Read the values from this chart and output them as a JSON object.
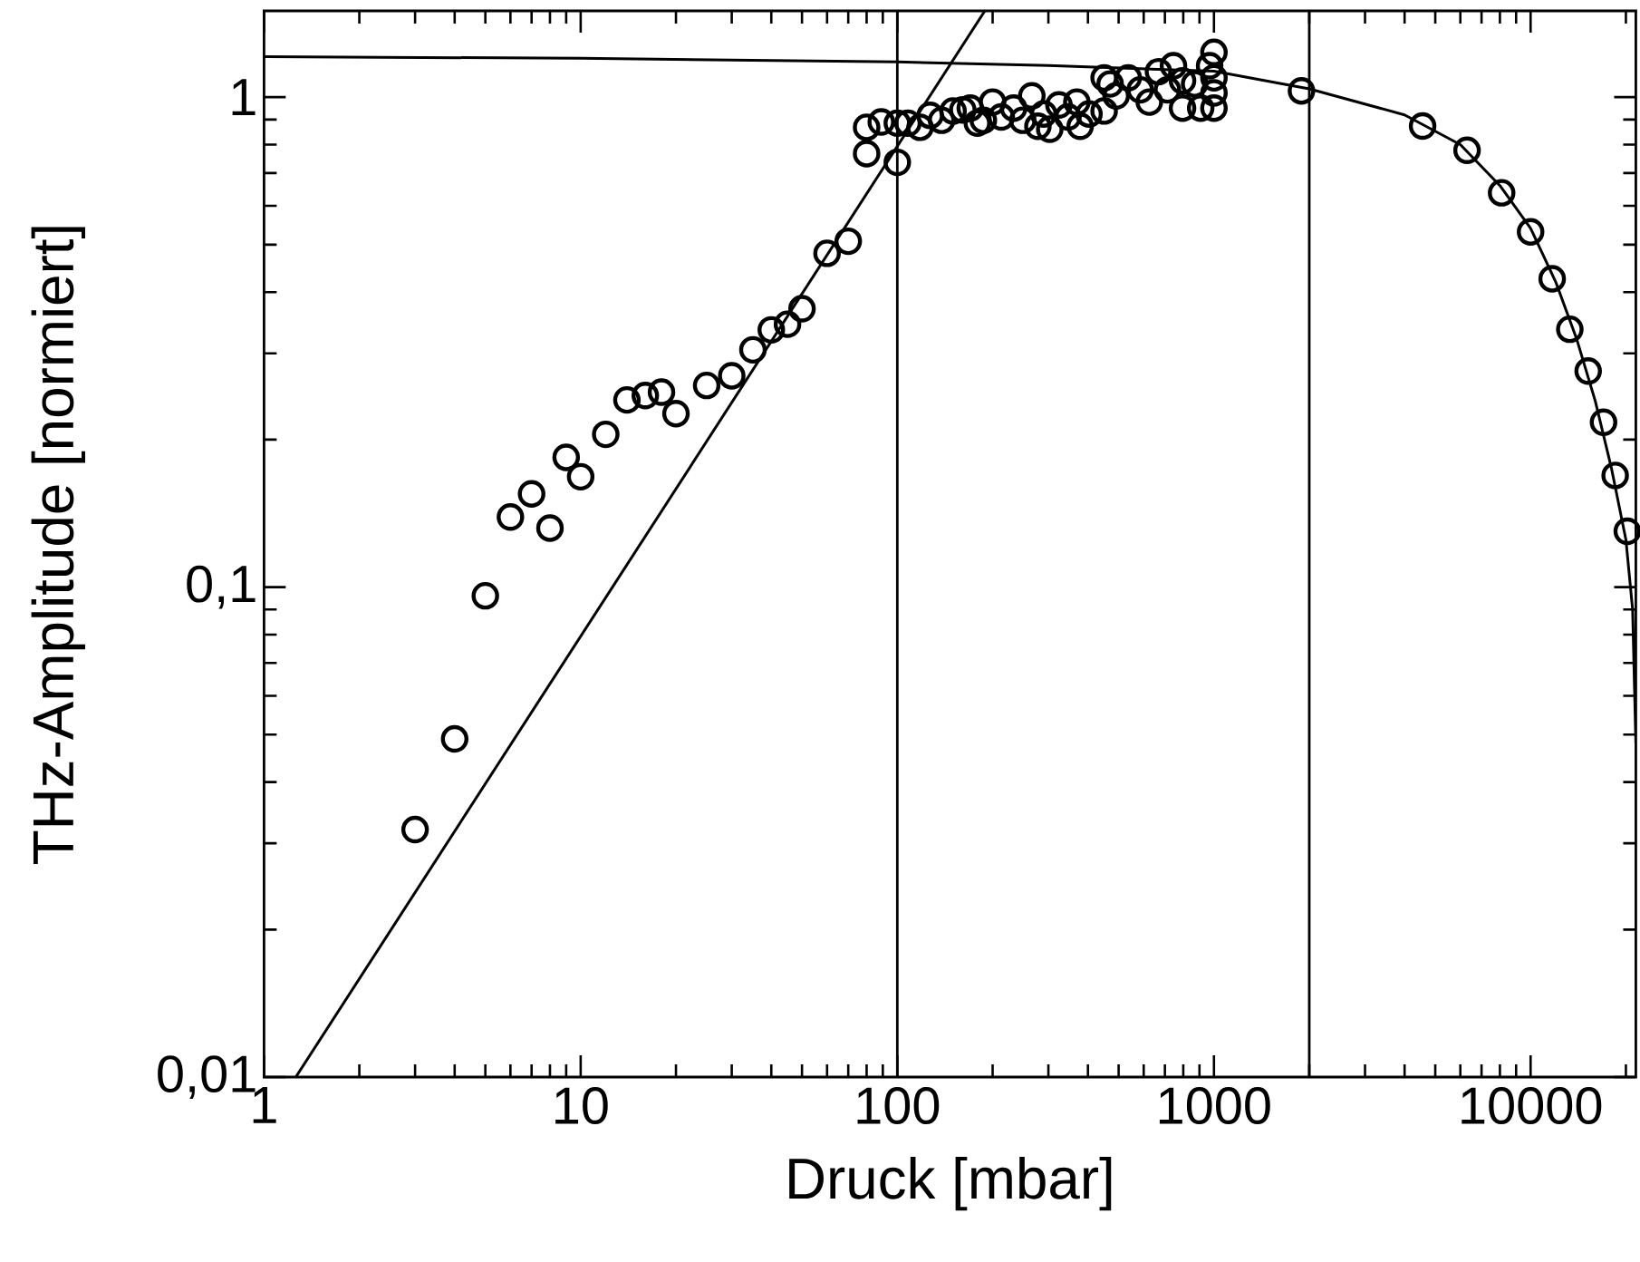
{
  "chart_data": {
    "type": "scatter",
    "xlabel": "Druck [mbar]",
    "ylabel": "THz-Amplitude [normiert]",
    "log": "xy",
    "xlim": [
      1,
      21500
    ],
    "ylim": [
      0.01,
      1.5
    ],
    "xticks": [
      1,
      10,
      100,
      1000,
      10000
    ],
    "yticks": [
      {
        "value": 0.01,
        "label": "0,01"
      },
      {
        "value": 0.1,
        "label": "0,1"
      },
      1
    ],
    "ref_lines": [
      {
        "axis": "x",
        "value": 100,
        "color": "#000000"
      },
      {
        "axis": "x",
        "value": 2000,
        "color": "#000000"
      }
    ],
    "series": [
      {
        "marker": "circle",
        "color": "#000000",
        "x": [
          3,
          4,
          5,
          6,
          7,
          8,
          9,
          10,
          12,
          14,
          16,
          18,
          20,
          25,
          30,
          35,
          40,
          45,
          50,
          60,
          70,
          80,
          80,
          89,
          100,
          100,
          108,
          118,
          127,
          138,
          150,
          161,
          170,
          179,
          187,
          200,
          213,
          233,
          249,
          266,
          278,
          290,
          303,
          324,
          346,
          369,
          378,
          403,
          450,
          450,
          470,
          491,
          536,
          585,
          625,
          668,
          713,
          745,
          796,
          796,
          869,
          908,
          969,
          1000,
          1000,
          1000,
          1000,
          1890,
          4560,
          6300,
          8100,
          10000,
          11700,
          13300,
          15200,
          17000,
          18500,
          20200
        ],
        "values": [
          0.032,
          0.049,
          0.096,
          0.139,
          0.155,
          0.132,
          0.184,
          0.168,
          0.205,
          0.241,
          0.246,
          0.25,
          0.226,
          0.258,
          0.27,
          0.305,
          0.335,
          0.344,
          0.37,
          0.48,
          0.508,
          0.767,
          0.868,
          0.89,
          0.736,
          0.885,
          0.885,
          0.868,
          0.918,
          0.897,
          0.937,
          0.942,
          0.95,
          0.885,
          0.897,
          0.977,
          0.911,
          0.95,
          0.897,
          1.006,
          0.872,
          0.924,
          0.86,
          0.964,
          0.911,
          0.977,
          0.872,
          0.924,
          0.937,
          1.095,
          1.064,
          1.006,
          1.095,
          1.035,
          0.977,
          1.127,
          1.035,
          1.159,
          0.95,
          1.08,
          1.064,
          0.95,
          1.159,
          1.234,
          1.095,
          1.02,
          0.95,
          1.03,
          0.873,
          0.779,
          0.638,
          0.531,
          0.426,
          0.336,
          0.276,
          0.217,
          0.169,
          0.13
        ]
      },
      {
        "type": "line",
        "marker": "none",
        "line_style": "solid",
        "color": "#000000",
        "x": [
          1.26,
          189
        ],
        "values": [
          0.01,
          1.5
        ]
      },
      {
        "type": "line",
        "marker": "none",
        "line_style": "solid",
        "color": "#000000",
        "x": [
          1,
          10,
          100,
          300,
          1000,
          2000,
          4000,
          6000,
          8000,
          10000,
          12000,
          14000,
          16000,
          18000,
          20000,
          21000,
          21500
        ],
        "values": [
          1.21,
          1.2,
          1.18,
          1.16,
          1.13,
          1.04,
          0.92,
          0.8,
          0.66,
          0.54,
          0.42,
          0.32,
          0.24,
          0.175,
          0.125,
          0.09,
          0.048
        ]
      }
    ]
  }
}
